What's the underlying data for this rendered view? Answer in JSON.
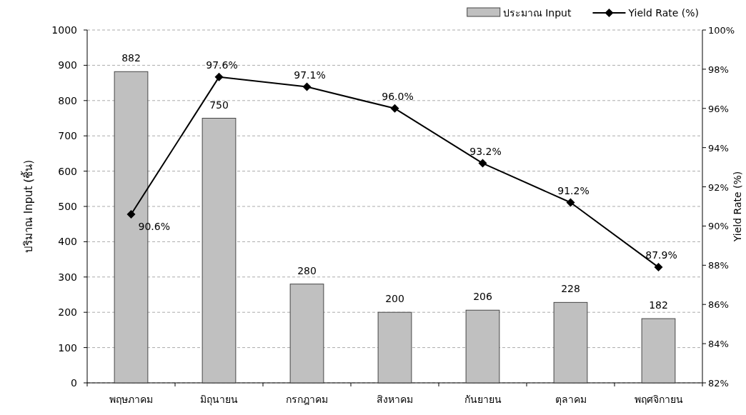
{
  "chart_data": {
    "type": "bar",
    "categories": [
      "พฤษภาคม",
      "มิถุนายน",
      "กรกฎาคม",
      "สิงหาคม",
      "กันยายน",
      "ตุลาคม",
      "พฤศจิกายน"
    ],
    "ylabel": "ปริมาณ Input (ชิ้น)",
    "y2label": "Yield Rate (%)",
    "series": [
      {
        "name": "ประมาณ Input",
        "color": "#c0c0c0",
        "values": [
          882,
          750,
          280,
          200,
          206,
          228,
          182
        ],
        "value_labels": [
          "882",
          "750",
          "280",
          "200",
          "206",
          "228",
          "182"
        ]
      },
      {
        "name": "Yield Rate (%)",
        "type": "line",
        "axis": "y2",
        "color": "#000000",
        "marker": "diamond",
        "values": [
          90.6,
          97.6,
          97.1,
          96.0,
          93.2,
          91.2,
          87.9
        ],
        "value_labels": [
          "90.6%",
          "97.6%",
          "97.1%",
          "96.0%",
          "93.2%",
          "91.2%",
          "87.9%"
        ]
      }
    ],
    "ylim": [
      0,
      1000
    ],
    "yticks": [
      0,
      100,
      200,
      300,
      400,
      500,
      600,
      700,
      800,
      900,
      1000
    ],
    "y2lim": [
      82,
      100
    ],
    "y2ticks": [
      {
        "value": 82,
        "label": "82%"
      },
      {
        "value": 84,
        "label": "84%"
      },
      {
        "value": 86,
        "label": "86%"
      },
      {
        "value": 88,
        "label": "88%"
      },
      {
        "value": 90,
        "label": "90%"
      },
      {
        "value": 92,
        "label": "92%"
      },
      {
        "value": 94,
        "label": "94%"
      },
      {
        "value": 96,
        "label": "96%"
      },
      {
        "value": 98,
        "label": "98%"
      },
      {
        "value": 100,
        "label": "100%"
      }
    ],
    "grid": "y",
    "legend": "top right"
  }
}
